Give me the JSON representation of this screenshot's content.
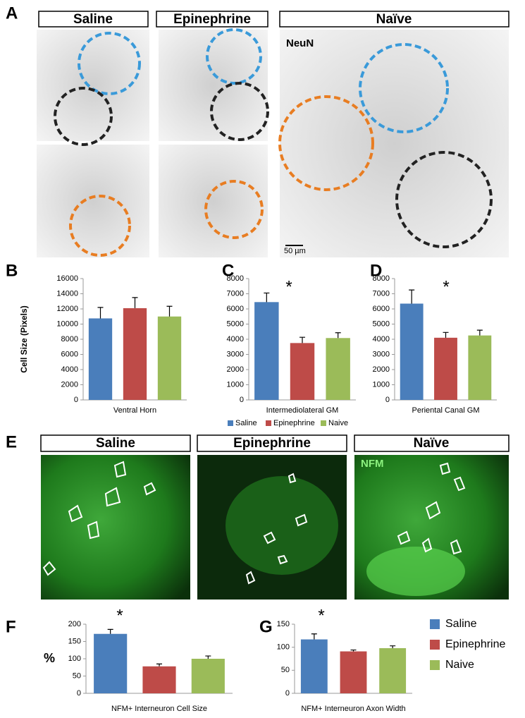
{
  "panels": {
    "A": {
      "letter": "A",
      "headers": [
        "Saline",
        "Epinephrine",
        "Naïve"
      ],
      "stain": "NeuN",
      "scale": "50 µm"
    },
    "B": {
      "letter": "B"
    },
    "C": {
      "letter": "C"
    },
    "D": {
      "letter": "D"
    },
    "E": {
      "letter": "E",
      "headers": [
        "Saline",
        "Epinephrine",
        "Naïve"
      ],
      "stain": "NFM"
    },
    "F": {
      "letter": "F"
    },
    "G": {
      "letter": "G"
    }
  },
  "chart_data": [
    {
      "type": "bar",
      "ylabel": "Cell Size (Pixels)",
      "xlabel": "Ventral Horn",
      "ylim": [
        0,
        16000
      ],
      "yticks": [
        0,
        2000,
        4000,
        6000,
        8000,
        10000,
        12000,
        14000,
        16000
      ],
      "series": [
        {
          "color": "#4a7ebb",
          "values": [
            10750
          ],
          "errors": [
            1450
          ]
        },
        {
          "color": "#be4b48",
          "values": [
            12100
          ],
          "errors": [
            1400
          ]
        },
        {
          "color": "#9bbb59",
          "values": [
            11000
          ],
          "errors": [
            1350
          ]
        }
      ]
    },
    {
      "type": "bar",
      "xlabel": "Intermediolateral GM",
      "annotation": "*",
      "ylim": [
        0,
        8000
      ],
      "yticks": [
        0,
        1000,
        2000,
        3000,
        4000,
        5000,
        6000,
        7000,
        8000
      ],
      "legend": "bottom",
      "series": [
        {
          "name": "Saline",
          "color": "#4a7ebb",
          "values": [
            6450
          ],
          "errors": [
            600
          ]
        },
        {
          "name": "Epinephrine",
          "color": "#be4b48",
          "values": [
            3750
          ],
          "errors": [
            380
          ]
        },
        {
          "name": "Naive",
          "color": "#9bbb59",
          "values": [
            4080
          ],
          "errors": [
            350
          ]
        }
      ]
    },
    {
      "type": "bar",
      "xlabel": "Periental Canal GM",
      "annotation": "*",
      "ylim": [
        0,
        8000
      ],
      "yticks": [
        0,
        1000,
        2000,
        3000,
        4000,
        5000,
        6000,
        7000,
        8000
      ],
      "series": [
        {
          "color": "#4a7ebb",
          "values": [
            6350
          ],
          "errors": [
            900
          ]
        },
        {
          "color": "#be4b48",
          "values": [
            4100
          ],
          "errors": [
            350
          ]
        },
        {
          "color": "#9bbb59",
          "values": [
            4250
          ],
          "errors": [
            350
          ]
        }
      ]
    },
    {
      "type": "bar",
      "ylabel": "%",
      "xlabel": "NFM+ Interneuron Cell Size",
      "annotation": "*",
      "ylim": [
        0,
        200
      ],
      "yticks": [
        0,
        50,
        100,
        150,
        200
      ],
      "series": [
        {
          "color": "#4a7ebb",
          "values": [
            172
          ],
          "errors": [
            13
          ]
        },
        {
          "color": "#be4b48",
          "values": [
            78
          ],
          "errors": [
            7
          ]
        },
        {
          "color": "#9bbb59",
          "values": [
            100
          ],
          "errors": [
            8
          ]
        }
      ]
    },
    {
      "type": "bar",
      "xlabel": "NFM+ Interneuron Axon Width",
      "annotation": "*",
      "ylim": [
        0,
        150
      ],
      "yticks": [
        0,
        50,
        100,
        150
      ],
      "legend": "right",
      "series": [
        {
          "name": "Saline",
          "color": "#4a7ebb",
          "values": [
            117
          ],
          "errors": [
            12
          ]
        },
        {
          "name": "Epinephrine",
          "color": "#be4b48",
          "values": [
            91
          ],
          "errors": [
            3
          ]
        },
        {
          "name": "Naive",
          "color": "#9bbb59",
          "values": [
            98
          ],
          "errors": [
            5
          ]
        }
      ]
    }
  ]
}
